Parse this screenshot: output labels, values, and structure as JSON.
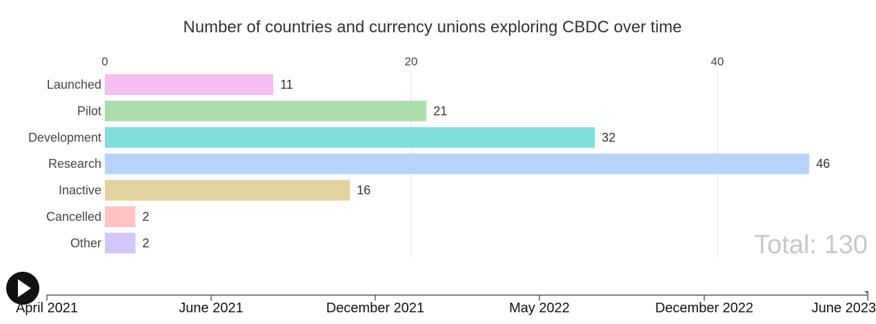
{
  "chart_data": {
    "type": "bar",
    "orientation": "horizontal",
    "title": "Number of countries and currency unions exploring CBDC over time",
    "categories": [
      "Launched",
      "Pilot",
      "Development",
      "Research",
      "Inactive",
      "Cancelled",
      "Other"
    ],
    "values": [
      11,
      21,
      32,
      46,
      16,
      2,
      2
    ],
    "colors": [
      "#f5bdf0",
      "#a9dfac",
      "#7fdfdd",
      "#b8d3fa",
      "#e2d29f",
      "#ffc3c3",
      "#d3c7f7"
    ],
    "xticks": [
      0,
      20,
      40
    ],
    "xlim": [
      0,
      46
    ],
    "grid": true,
    "total_label": "Total: 130"
  },
  "timeline": {
    "labels": [
      "April 2021",
      "June 2021",
      "December 2021",
      "May 2022",
      "December 2022",
      "June 2023"
    ],
    "progress": 1.0,
    "play_icon": "play-icon"
  }
}
